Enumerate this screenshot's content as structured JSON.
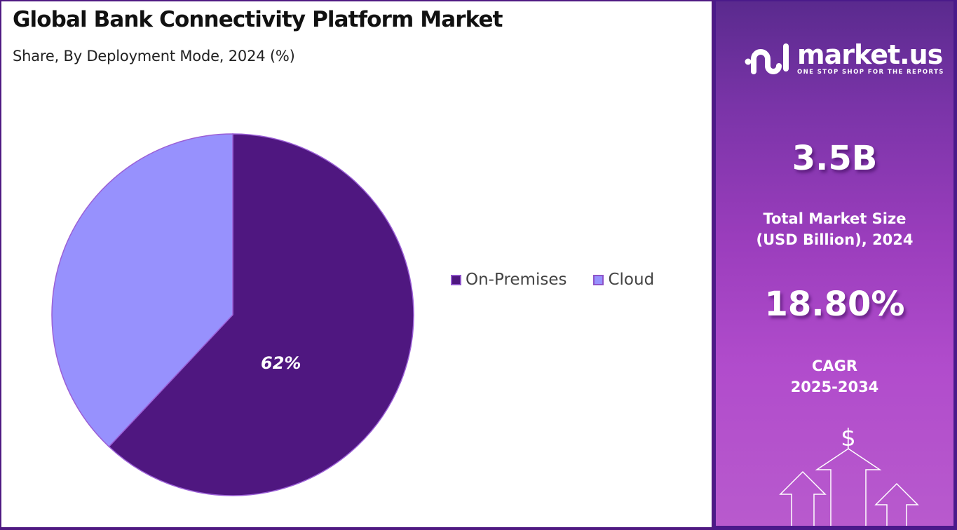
{
  "header": {
    "title": "Global Bank Connectivity Platform Market",
    "subtitle": "Share, By Deployment Mode, 2024 (%)"
  },
  "legend": {
    "items": [
      {
        "label": "On-Premises",
        "color": "#4f1780"
      },
      {
        "label": "Cloud",
        "color": "#9791fd"
      }
    ]
  },
  "chart_data": {
    "type": "pie",
    "title": "Global Bank Connectivity Platform Market",
    "subtitle": "Share, By Deployment Mode, 2024 (%)",
    "categories": [
      "On-Premises",
      "Cloud"
    ],
    "values": [
      62,
      38
    ],
    "colors": [
      "#4f1780",
      "#9791fd"
    ],
    "data_labels": [
      "62%",
      ""
    ],
    "start_angle": "12 o'clock, clockwise",
    "legend_position": "right"
  },
  "pie_labels": {
    "on_premises": "62%"
  },
  "sidebar": {
    "brand": {
      "name": "market.us",
      "tagline": "ONE STOP SHOP FOR THE REPORTS"
    },
    "market_size": {
      "value": "3.5B",
      "label_line1": "Total Market Size",
      "label_line2": "(USD Billion), 2024"
    },
    "cagr": {
      "value": "18.80%",
      "label_line1": "CAGR",
      "label_line2": "2025-2034"
    },
    "decor_icon": "$"
  }
}
